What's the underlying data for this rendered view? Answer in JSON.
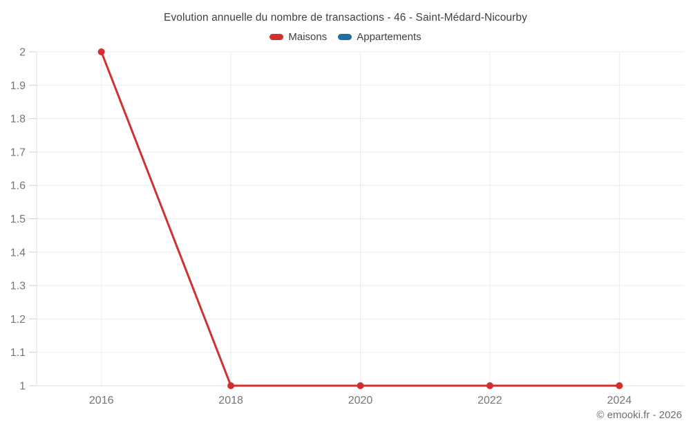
{
  "header": {
    "title": "Evolution annuelle du nombre de transactions - 46 - Saint-Médard-Nicourby"
  },
  "legend": {
    "items": [
      {
        "label": "Maisons",
        "color": "#d32f2f"
      },
      {
        "label": "Appartements",
        "color": "#1c6ea4"
      }
    ]
  },
  "footer": {
    "credit": "© emooki.fr - 2026"
  },
  "chart_data": {
    "type": "line",
    "title": "Evolution annuelle du nombre de transactions - 46 - Saint-Médard-Nicourby",
    "xlabel": "",
    "ylabel": "",
    "xlim": [
      2015,
      2025
    ],
    "ylim": [
      1,
      2
    ],
    "grid": true,
    "legend_position": "top",
    "grid_color": "#ebebeb",
    "axis_color": "#e2e2e2",
    "tick_color": "#cfcfcf",
    "tick_label_color": "#757575",
    "xticks": [
      {
        "value": 2016,
        "label": "2016"
      },
      {
        "value": 2018,
        "label": "2018"
      },
      {
        "value": 2020,
        "label": "2020"
      },
      {
        "value": 2022,
        "label": "2022"
      },
      {
        "value": 2024,
        "label": "2024"
      }
    ],
    "yticks": [
      {
        "value": 1,
        "label": "1"
      },
      {
        "value": 1.1,
        "label": "1.1"
      },
      {
        "value": 1.2,
        "label": "1.2"
      },
      {
        "value": 1.3,
        "label": "1.3"
      },
      {
        "value": 1.4,
        "label": "1.4"
      },
      {
        "value": 1.5,
        "label": "1.5"
      },
      {
        "value": 1.6,
        "label": "1.6"
      },
      {
        "value": 1.7,
        "label": "1.7"
      },
      {
        "value": 1.8,
        "label": "1.8"
      },
      {
        "value": 1.9,
        "label": "1.9"
      },
      {
        "value": 2,
        "label": "2"
      }
    ],
    "series": [
      {
        "name": "Maisons",
        "color": "#d32f2f",
        "x": [
          2016,
          2018,
          2020,
          2022,
          2024
        ],
        "values": [
          2,
          1,
          1,
          1,
          1
        ]
      },
      {
        "name": "Appartements",
        "color": "#1c6ea4",
        "x": [],
        "values": []
      }
    ]
  }
}
